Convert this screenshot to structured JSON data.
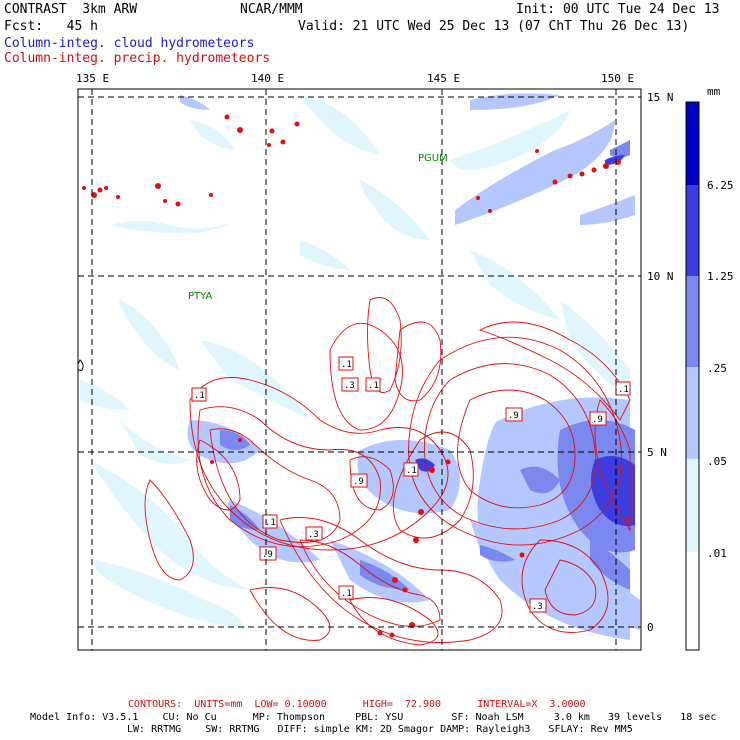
{
  "header": {
    "line1_left": "CONTRAST  3km ARW",
    "line1_mid": "NCAR/MMM",
    "line1_right": "Init: 00 UTC Tue 24 Dec 13",
    "line2_left": "Fcst:   45 h",
    "line2_right": "Valid: 21 UTC Wed 25 Dec 13 (07 ChT Thu 26 Dec 13)",
    "field_cloud": "Column-integ. cloud hydrometeors",
    "field_precip": "Column-integ. precip. hydrometeors"
  },
  "colors": {
    "cloud_text": "#1a1acc",
    "precip_text": "#cc1010",
    "shade_1": "#e0f6ff",
    "shade_2": "#b4c8ff",
    "shade_3": "#7a88f0",
    "shade_4": "#3c3ce0",
    "shade_5": "#0000c8",
    "contour": "#dd1010",
    "station": "#008800"
  },
  "map": {
    "lon_labels": [
      "135 E",
      "140 E",
      "145 E",
      "150 E"
    ],
    "lat_labels": [
      "15 N",
      "10 N",
      "5 N",
      "0"
    ],
    "stations": [
      {
        "name": "PGUM"
      },
      {
        "name": "PTYA"
      }
    ],
    "contour_labels": [
      ".1",
      ".3",
      ".1",
      ".1",
      ".1",
      ".9",
      ".9",
      ".1",
      ".9",
      ".1",
      ".3",
      ".9",
      ".1",
      ".3"
    ]
  },
  "legend": {
    "unit": "mm",
    "levels": [
      "6.25",
      "1.25",
      ".25",
      ".05",
      ".01"
    ]
  },
  "footer": {
    "contours": "CONTOURS:  UNITS=mm  LOW= 0.10000      HIGH=  72.900      INTERVAL=X  3.0000",
    "model1": "Model Info: V3.5.1    CU: No Cu      MP: Thompson     PBL: YSU        SF: Noah LSM     3.0 km   39 levels   18 sec",
    "model2": "LW: RRTMG    SW: RRTMG   DIFF: simple KM: 2D Smagor DAMP: Rayleigh3   SFLAY: Rev MM5"
  }
}
